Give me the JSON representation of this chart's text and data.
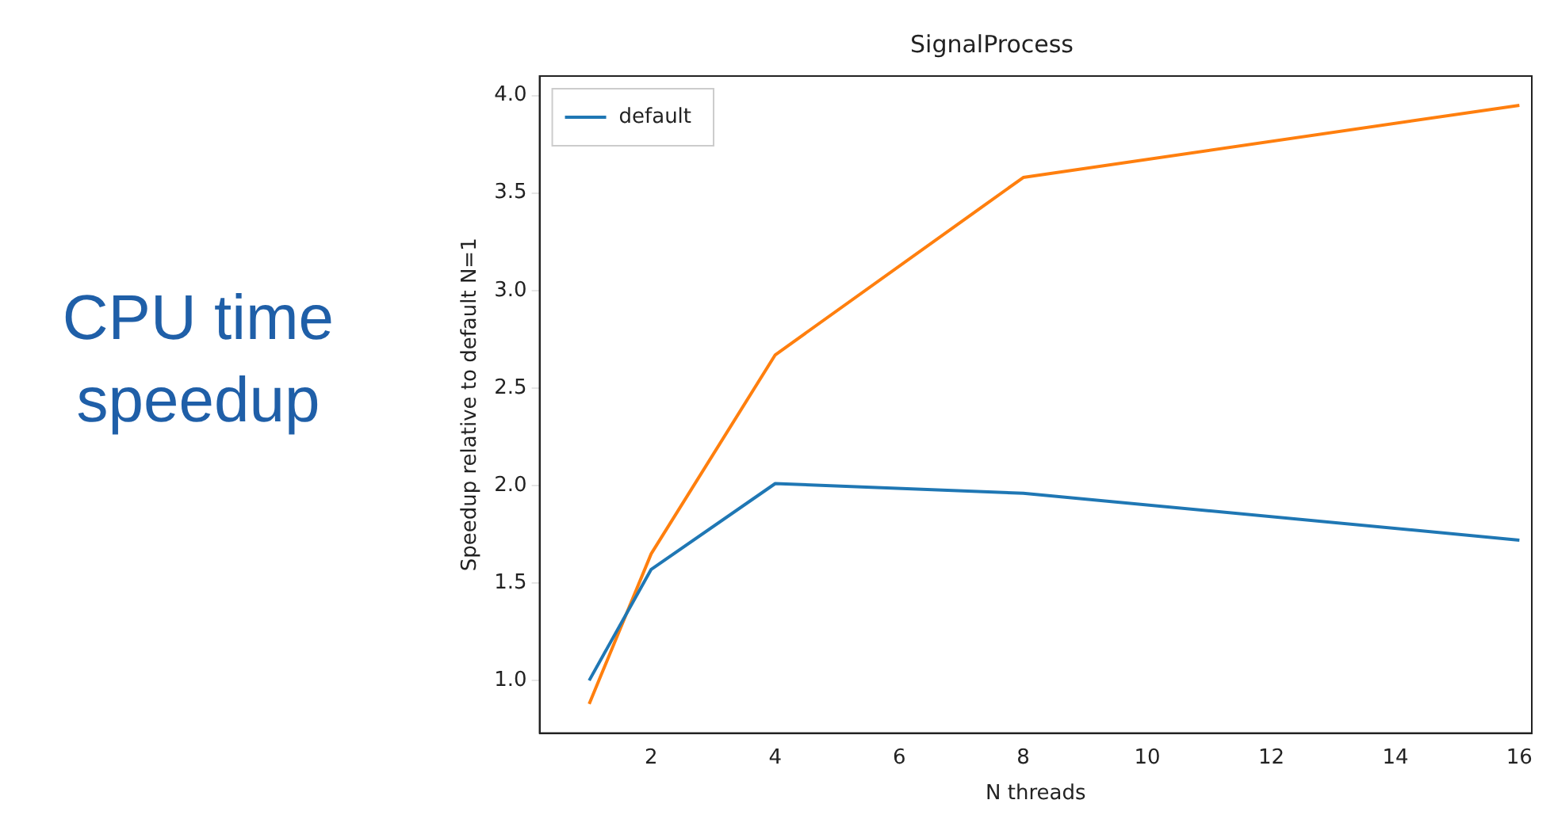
{
  "chart_data": {
    "type": "line",
    "title": "SignalProcess",
    "xlabel": "N threads",
    "ylabel": "Speedup relative to default N=1",
    "annotations": [
      "CPU time speedup"
    ],
    "x": [
      1,
      2,
      4,
      8,
      16
    ],
    "series": [
      {
        "name": "default",
        "color": "#1f77b4",
        "values": [
          1.0,
          1.57,
          2.01,
          1.96,
          1.72
        ]
      },
      {
        "color": "#ff7f0e",
        "values": [
          0.88,
          1.65,
          2.67,
          3.58,
          3.95
        ]
      }
    ],
    "xlim": [
      0.2,
      16.2
    ],
    "xticks": [
      2,
      4,
      6,
      8,
      10,
      12,
      14,
      16
    ],
    "ylim": [
      0.73,
      4.1
    ],
    "yticks": [
      {
        "value": 1,
        "label": "1.0"
      },
      1.5,
      {
        "value": 2,
        "label": "2.0"
      },
      2.5,
      {
        "value": 3,
        "label": "3.0"
      },
      3.5,
      {
        "value": 4,
        "label": "4.0"
      }
    ],
    "grid": false,
    "legend": "top left",
    "marker": "none",
    "line_style": "solid"
  }
}
